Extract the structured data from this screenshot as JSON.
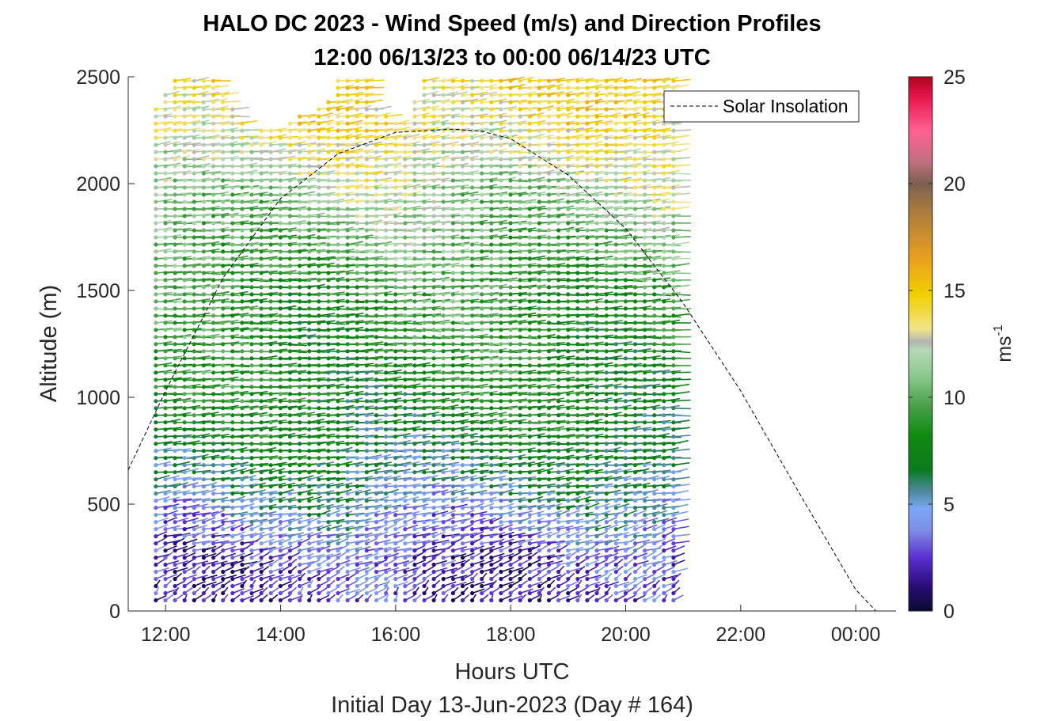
{
  "chart_data": {
    "type": "wind-barb-profile",
    "title": "HALO DC 2023 - Wind Speed (m/s) and Direction Profiles",
    "subtitle": "12:00 06/13/23 to 00:00 06/14/23  UTC",
    "xlabel": "Hours UTC",
    "xlabel2": "Initial Day 13-Jun-2023 (Day # 164)",
    "ylabel": "Altitude (m)",
    "x_units": "hours UTC",
    "xlim": [
      11.35,
      24.7
    ],
    "ylim": [
      0,
      2500
    ],
    "x_ticks": [
      12,
      14,
      16,
      18,
      20,
      22,
      24
    ],
    "x_tick_labels": [
      "12:00",
      "14:00",
      "16:00",
      "18:00",
      "20:00",
      "22:00",
      "00:00"
    ],
    "y_ticks": [
      0,
      500,
      1000,
      1500,
      2000,
      2500
    ],
    "y_tick_labels": [
      "0",
      "500",
      "1000",
      "1500",
      "2000",
      "2500"
    ],
    "grid": false,
    "legend": {
      "label": "Solar Insolation",
      "placement": "top-right",
      "style": "dashed black"
    },
    "colorbar": {
      "label": "ms-1",
      "label_main": "ms",
      "label_sup": "-1",
      "range": [
        0,
        25
      ],
      "ticks": [
        0,
        5,
        10,
        15,
        20,
        25
      ],
      "tick_labels": [
        "0",
        "5",
        "10",
        "15",
        "20",
        "25"
      ],
      "colors": [
        [
          0,
          "#0a0a30"
        ],
        [
          1.2,
          "#2a0e7a"
        ],
        [
          2.5,
          "#5a2fd0"
        ],
        [
          3.8,
          "#7f8fe8"
        ],
        [
          4.8,
          "#7aa6f2"
        ],
        [
          5.6,
          "#4d8aa0"
        ],
        [
          6.6,
          "#0b7a1f"
        ],
        [
          8.2,
          "#0f8a0f"
        ],
        [
          9.6,
          "#4aa04a"
        ],
        [
          11.0,
          "#8cc88c"
        ],
        [
          12.2,
          "#b6d8b6"
        ],
        [
          12.6,
          "#b4b4b4"
        ],
        [
          13.2,
          "#f2e48a"
        ],
        [
          14.8,
          "#f0d000"
        ],
        [
          16.5,
          "#e8a020"
        ],
        [
          18.8,
          "#a87a40"
        ],
        [
          20.0,
          "#7a6050"
        ],
        [
          21.0,
          "#c07080"
        ],
        [
          22.5,
          "#ff6090"
        ],
        [
          24.0,
          "#e81850"
        ],
        [
          25,
          "#b00018"
        ]
      ]
    },
    "solar_insolation": {
      "description_units": "altitude-equivalent of normalized solar curve",
      "x": [
        11.35,
        12.0,
        13.0,
        14.0,
        15.0,
        16.0,
        17.0,
        17.5,
        18.0,
        19.0,
        20.0,
        21.0,
        22.0,
        23.0,
        24.0,
        24.35,
        24.7
      ],
      "y": [
        660,
        1030,
        1560,
        1930,
        2140,
        2240,
        2255,
        2245,
        2210,
        2040,
        1790,
        1440,
        1030,
        560,
        100,
        0,
        0
      ]
    },
    "profiles": {
      "time_start": 11.83,
      "time_step": 0.1667,
      "n_profiles": 55,
      "alt_start": 50,
      "alt_step": 33.3,
      "top_altitude_by_time": [
        [
          11.83,
          2350
        ],
        [
          12.2,
          2500
        ],
        [
          12.8,
          2500
        ],
        [
          13.0,
          2420
        ],
        [
          13.5,
          2240
        ],
        [
          14.0,
          2280
        ],
        [
          14.8,
          2380
        ],
        [
          15.0,
          2500
        ],
        [
          15.5,
          2500
        ],
        [
          15.7,
          2320
        ],
        [
          16.2,
          2300
        ],
        [
          16.5,
          2500
        ],
        [
          20.83,
          2500
        ]
      ],
      "wind_speed_by_altitude_ms": [
        [
          0,
          2.0
        ],
        [
          250,
          2.8
        ],
        [
          450,
          4.5
        ],
        [
          650,
          6.2
        ],
        [
          1000,
          8.0
        ],
        [
          1500,
          9.0
        ],
        [
          1900,
          11.0
        ],
        [
          2250,
          13.5
        ],
        [
          2500,
          14.5
        ]
      ],
      "wind_direction_deg_by_altitude": [
        [
          0,
          200
        ],
        [
          300,
          230
        ],
        [
          700,
          255
        ],
        [
          1300,
          265
        ],
        [
          2000,
          260
        ],
        [
          2500,
          250
        ]
      ]
    }
  }
}
